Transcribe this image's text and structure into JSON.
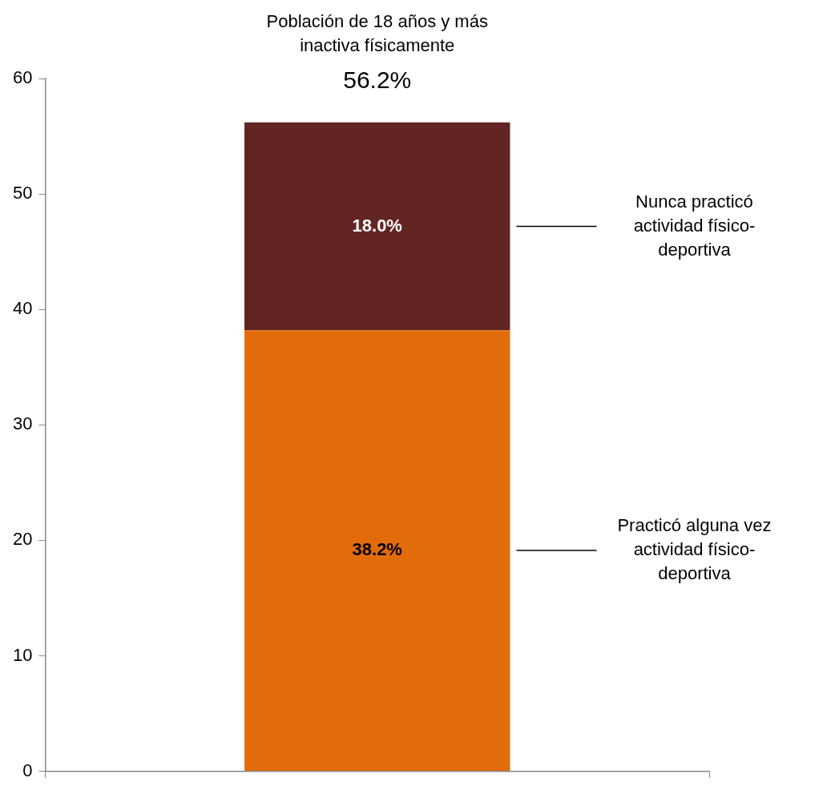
{
  "chart_data": {
    "type": "bar",
    "title": "Población de 18 años y más inactiva físicamente",
    "categories": [
      null
    ],
    "stacked": true,
    "series": [
      {
        "name": "Practicó alguna vez actividad físico-deportiva",
        "color": "#e36c0a",
        "values": [
          38.2
        ],
        "value_labels": [
          "38.2%"
        ]
      },
      {
        "name": "Nunca practicó actividad físico-deportiva",
        "color": "#632523",
        "values": [
          18.0
        ],
        "value_labels": [
          "18.0%"
        ]
      }
    ],
    "totals": [
      "56.2%"
    ],
    "ylim": [
      0,
      60
    ],
    "yticks": [
      0,
      10,
      20,
      30,
      40,
      50,
      60
    ],
    "grid": false,
    "legend": false
  }
}
